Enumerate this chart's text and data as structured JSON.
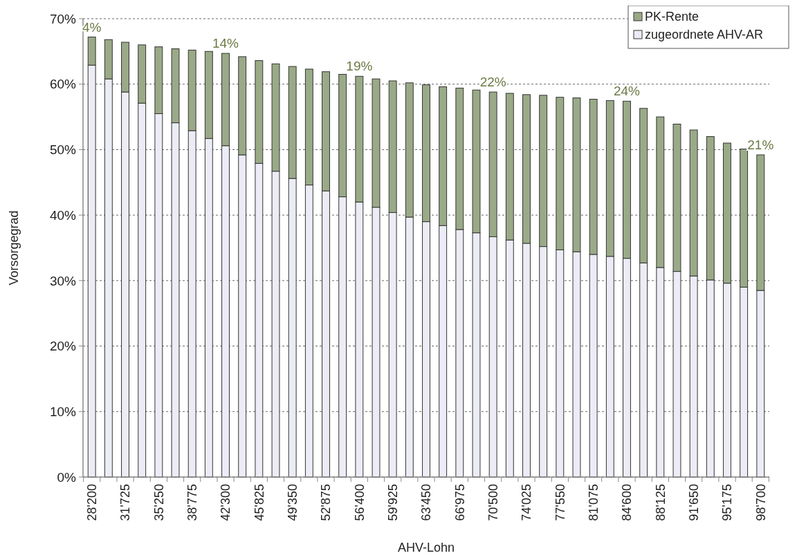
{
  "chart_data": {
    "type": "bar",
    "stacked": true,
    "xlabel": "AHV-Lohn",
    "ylabel": "Vorsorgegrad",
    "categories": [
      "28'200",
      null,
      "31'725",
      null,
      "35'250",
      null,
      "38'775",
      null,
      "42'300",
      null,
      "45'825",
      null,
      "49'350",
      null,
      "52'875",
      null,
      "56'400",
      null,
      "59'925",
      null,
      "63'450",
      null,
      "66'975",
      null,
      "70'500",
      null,
      "74'025",
      null,
      "77'550",
      null,
      "81'075",
      null,
      "84'600",
      null,
      "88'125",
      null,
      "91'650",
      null,
      "95'175",
      null,
      "98'700"
    ],
    "series": [
      {
        "name": "zugeordnete AHV-AR",
        "color": "#ececf6",
        "values": [
          62.9,
          60.8,
          58.8,
          57.1,
          55.5,
          54.1,
          52.9,
          51.7,
          50.6,
          49.2,
          47.9,
          46.7,
          45.6,
          44.6,
          43.7,
          42.8,
          42.0,
          41.2,
          40.4,
          39.7,
          39.0,
          38.4,
          37.8,
          37.3,
          36.7,
          36.2,
          35.7,
          35.2,
          34.7,
          34.4,
          34.0,
          33.7,
          33.4,
          32.7,
          32.0,
          31.4,
          30.7,
          30.1,
          29.6,
          29.0,
          28.5
        ]
      },
      {
        "name": "PK-Rente",
        "color": "#9aaa88",
        "values": [
          4.3,
          6.0,
          7.6,
          8.9,
          10.2,
          11.3,
          12.3,
          13.3,
          14.1,
          15.0,
          15.7,
          16.4,
          17.1,
          17.7,
          18.2,
          18.7,
          19.2,
          19.6,
          20.1,
          20.5,
          20.9,
          21.2,
          21.6,
          21.8,
          22.1,
          22.4,
          22.7,
          23.1,
          23.3,
          23.5,
          23.7,
          23.8,
          24.0,
          23.6,
          23.0,
          22.5,
          22.3,
          21.9,
          21.4,
          21.1,
          20.7
        ],
        "value_labels": [
          "4%",
          null,
          null,
          null,
          null,
          null,
          null,
          null,
          "14%",
          null,
          null,
          null,
          null,
          null,
          null,
          null,
          "19%",
          null,
          null,
          null,
          null,
          null,
          null,
          null,
          "22%",
          null,
          null,
          null,
          null,
          null,
          null,
          null,
          "24%",
          null,
          null,
          null,
          null,
          null,
          null,
          null,
          "21%"
        ]
      }
    ],
    "ylim": [
      0,
      70
    ],
    "yticks": [
      {
        "value": 0,
        "label": "0%"
      },
      {
        "value": 10,
        "label": "10%"
      },
      {
        "value": 20,
        "label": "20%"
      },
      {
        "value": 30,
        "label": "30%"
      },
      {
        "value": 40,
        "label": "40%"
      },
      {
        "value": 50,
        "label": "50%"
      },
      {
        "value": 60,
        "label": "60%"
      },
      {
        "value": 70,
        "label": "70%"
      }
    ],
    "grid": "y",
    "legend": "top right"
  }
}
